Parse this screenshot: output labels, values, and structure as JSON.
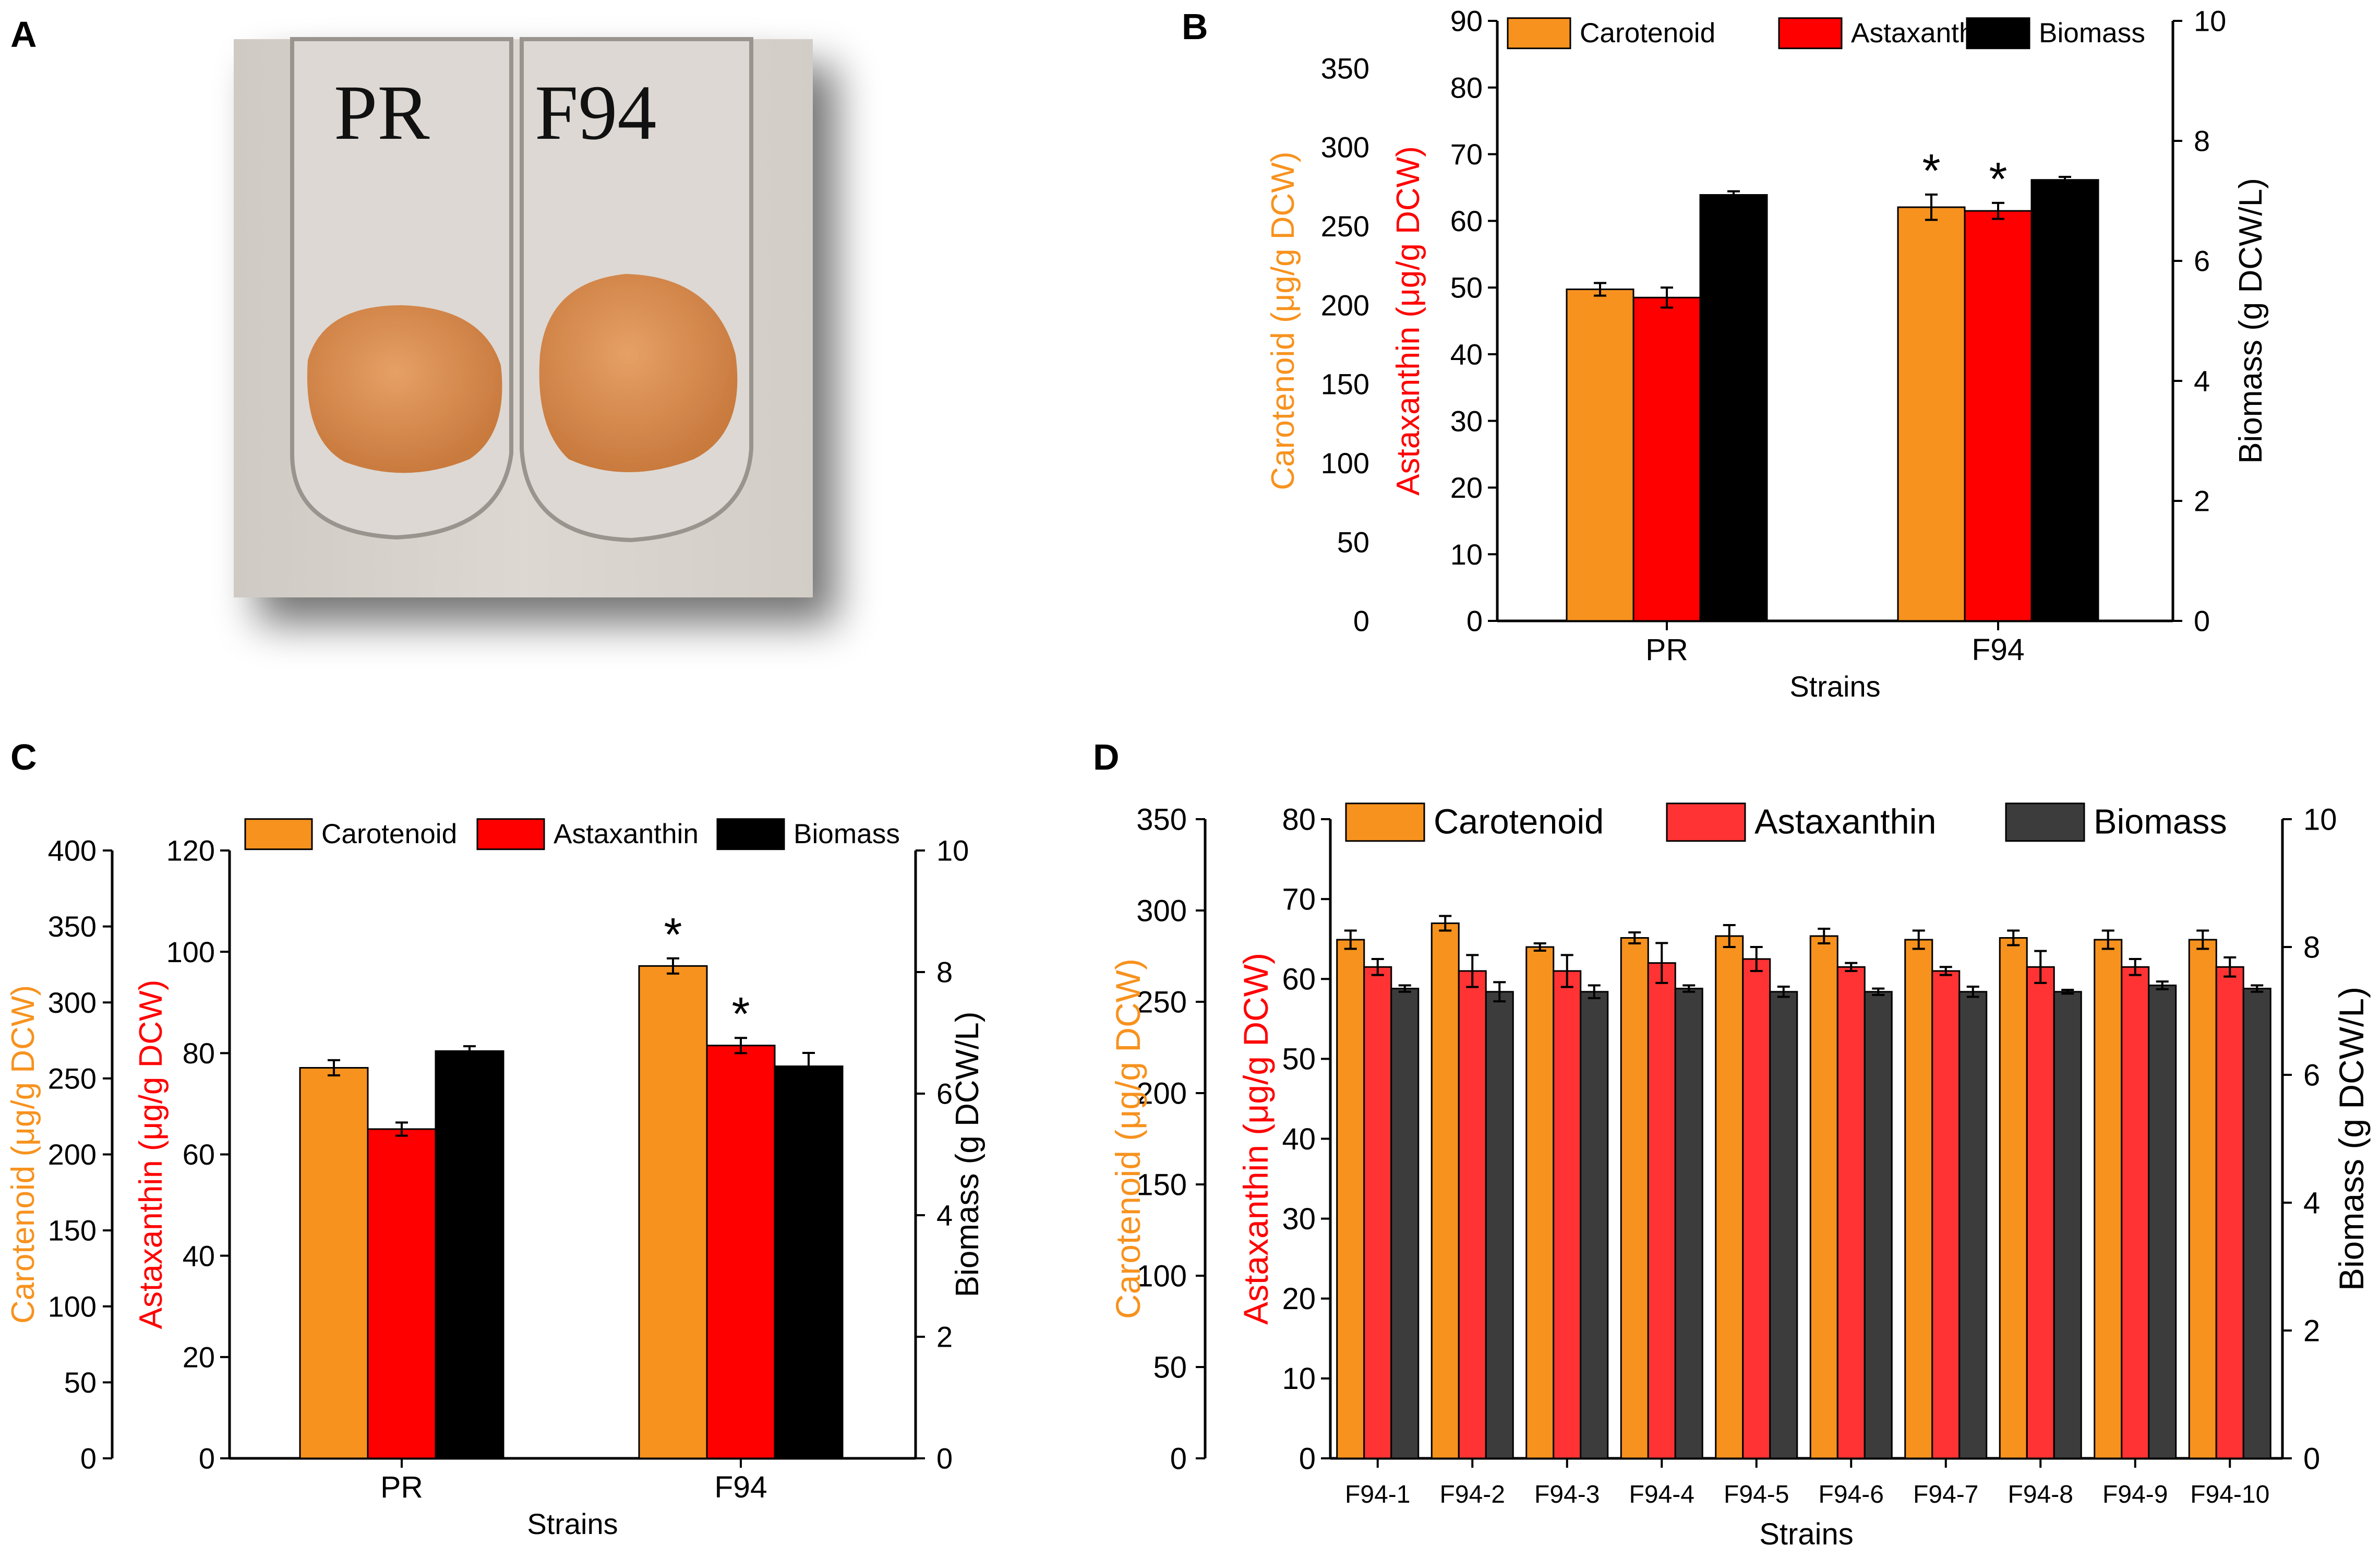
{
  "panels": {
    "A": {
      "label": "A",
      "tube_labels": [
        "PR",
        "F94"
      ]
    },
    "B": {
      "label": "B"
    },
    "C": {
      "label": "C"
    },
    "D": {
      "label": "D"
    }
  },
  "colors": {
    "carotenoid": "#f7921e",
    "astaxanthin": "#ff0000",
    "biomass": "#000000",
    "astaxanthin_d": "#ff3333",
    "biomass_d": "#3c3c3c",
    "photo_bg": "#d9d2cc",
    "pellet": "#d98a4e"
  },
  "chart_data": [
    {
      "panel": "B",
      "type": "bar",
      "categories": [
        "PR",
        "F94"
      ],
      "xlabel": "Strains",
      "series": [
        {
          "name": "Carotenoid",
          "axis": "carotenoid",
          "values": [
            210,
            262
          ],
          "errors": [
            4,
            8
          ],
          "sig": [
            false,
            true
          ]
        },
        {
          "name": "Astaxanthin",
          "axis": "astaxanthin",
          "values": [
            48.5,
            61.5
          ],
          "errors": [
            1.5,
            1.2
          ],
          "sig": [
            false,
            true
          ]
        },
        {
          "name": "Biomass",
          "axis": "biomass",
          "values": [
            7.1,
            7.35
          ],
          "errors": [
            0.06,
            0.05
          ],
          "sig": [
            false,
            false
          ]
        }
      ],
      "axes": {
        "carotenoid": {
          "label": "Carotenoid (μg/g DCW)",
          "ylim": [
            0,
            380
          ],
          "ticks": [
            0,
            50,
            100,
            150,
            200,
            250,
            300,
            350
          ]
        },
        "astaxanthin": {
          "label": "Astaxanthin (μg/g DCW)",
          "ylim": [
            0,
            90
          ],
          "ticks": [
            0,
            10,
            20,
            30,
            40,
            50,
            60,
            70,
            80,
            90
          ]
        },
        "biomass": {
          "label": "Biomass (g DCW/L)",
          "ylim": [
            0,
            10
          ],
          "ticks": [
            0,
            2,
            4,
            6,
            8,
            10
          ]
        }
      },
      "significance_marker": "*"
    },
    {
      "panel": "C",
      "type": "bar",
      "categories": [
        "PR",
        "F94"
      ],
      "xlabel": "Strains",
      "series": [
        {
          "name": "Carotenoid",
          "axis": "carotenoid",
          "values": [
            257,
            324
          ],
          "errors": [
            5,
            5
          ],
          "sig": [
            false,
            true
          ]
        },
        {
          "name": "Astaxanthin",
          "axis": "astaxanthin",
          "values": [
            65,
            81.5
          ],
          "errors": [
            1.3,
            1.5
          ],
          "sig": [
            false,
            true
          ]
        },
        {
          "name": "Biomass",
          "axis": "biomass",
          "values": [
            6.7,
            6.45
          ],
          "errors": [
            0.08,
            0.22
          ],
          "sig": [
            false,
            false
          ]
        }
      ],
      "axes": {
        "carotenoid": {
          "label": "Carotenoid (μg/g DCW)",
          "ylim": [
            0,
            400
          ],
          "ticks": [
            0,
            50,
            100,
            150,
            200,
            250,
            300,
            350,
            400
          ]
        },
        "astaxanthin": {
          "label": "Astaxanthin (μg/g DCW)",
          "ylim": [
            0,
            120
          ],
          "ticks": [
            0,
            20,
            40,
            60,
            80,
            100,
            120
          ]
        },
        "biomass": {
          "label": "Biomass (g DCW/L)",
          "ylim": [
            0,
            10
          ],
          "ticks": [
            0,
            2,
            4,
            6,
            8,
            10
          ]
        }
      },
      "significance_marker": "*"
    },
    {
      "panel": "D",
      "type": "bar",
      "categories": [
        "F94-1",
        "F94-2",
        "F94-3",
        "F94-4",
        "F94-5",
        "F94-6",
        "F94-7",
        "F94-8",
        "F94-9",
        "F94-10"
      ],
      "xlabel": "Strains",
      "series": [
        {
          "name": "Carotenoid",
          "axis": "carotenoid",
          "values": [
            284,
            293,
            280,
            285,
            286,
            286,
            284,
            285,
            284,
            284
          ],
          "errors": [
            5,
            4,
            2,
            3,
            6,
            4,
            5,
            4,
            5,
            5
          ],
          "sig": [
            false,
            false,
            false,
            false,
            false,
            false,
            false,
            false,
            false,
            false
          ]
        },
        {
          "name": "Astaxanthin",
          "axis": "astaxanthin",
          "values": [
            61.5,
            61,
            61,
            62,
            62.5,
            61.5,
            61,
            61.5,
            61.5,
            61.5
          ],
          "errors": [
            1,
            2,
            2,
            2.5,
            1.5,
            0.5,
            0.5,
            2,
            1,
            1.2
          ],
          "sig": [
            false,
            false,
            false,
            false,
            false,
            false,
            false,
            false,
            false,
            false
          ]
        },
        {
          "name": "Biomass",
          "axis": "biomass",
          "values": [
            7.35,
            7.3,
            7.3,
            7.35,
            7.3,
            7.3,
            7.3,
            7.3,
            7.4,
            7.35
          ],
          "errors": [
            0.05,
            0.15,
            0.1,
            0.05,
            0.08,
            0.05,
            0.08,
            0.03,
            0.06,
            0.05
          ],
          "sig": [
            false,
            false,
            false,
            false,
            false,
            false,
            false,
            false,
            false,
            false
          ]
        }
      ],
      "axes": {
        "carotenoid": {
          "label": "Carotenoid (μg/g DCW)",
          "ylim": [
            0,
            350
          ],
          "ticks": [
            0,
            50,
            100,
            150,
            200,
            250,
            300,
            350
          ]
        },
        "astaxanthin": {
          "label": "Astaxanthin (μg/g DCW)",
          "ylim": [
            0,
            80
          ],
          "ticks": [
            0,
            10,
            20,
            30,
            40,
            50,
            60,
            70,
            80
          ]
        },
        "biomass": {
          "label": "Biomass (g DCW/L)",
          "ylim": [
            0,
            10
          ],
          "ticks": [
            0,
            2,
            4,
            6,
            8,
            10
          ]
        }
      },
      "significance_marker": ""
    }
  ]
}
